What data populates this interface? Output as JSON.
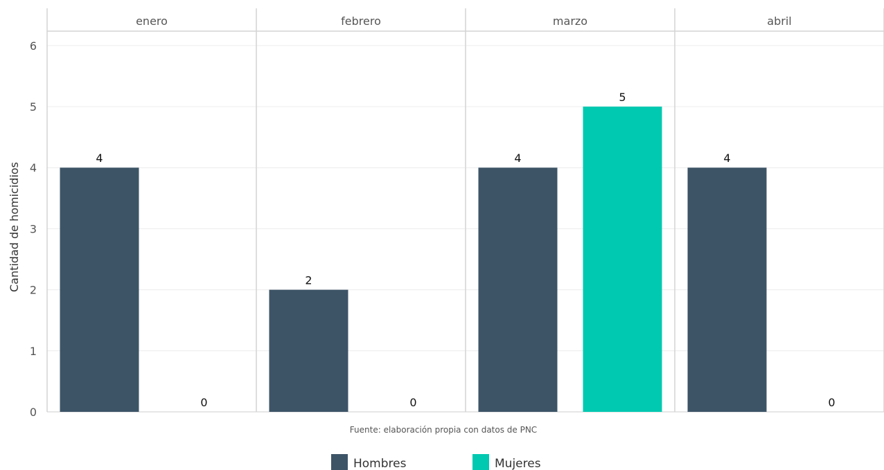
{
  "chart_data": {
    "type": "bar",
    "facets": [
      "enero",
      "febrero",
      "marzo",
      "abril"
    ],
    "categories": [
      "enero",
      "febrero",
      "marzo",
      "abril"
    ],
    "series": [
      {
        "name": "Hombres",
        "color": "#3d5467",
        "values": [
          4,
          2,
          4,
          4
        ]
      },
      {
        "name": "Mujeres",
        "color": "#00c9b1",
        "values": [
          0,
          0,
          5,
          0
        ]
      }
    ],
    "ylabel": "Cantidad de homicidios",
    "xlabel": "",
    "ylim": [
      0,
      6
    ],
    "yticks": [
      0,
      1,
      2,
      3,
      4,
      5,
      6
    ],
    "caption": "Fuente: elaboración propia con datos de PNC",
    "legend_position": "bottom",
    "grid": true
  }
}
